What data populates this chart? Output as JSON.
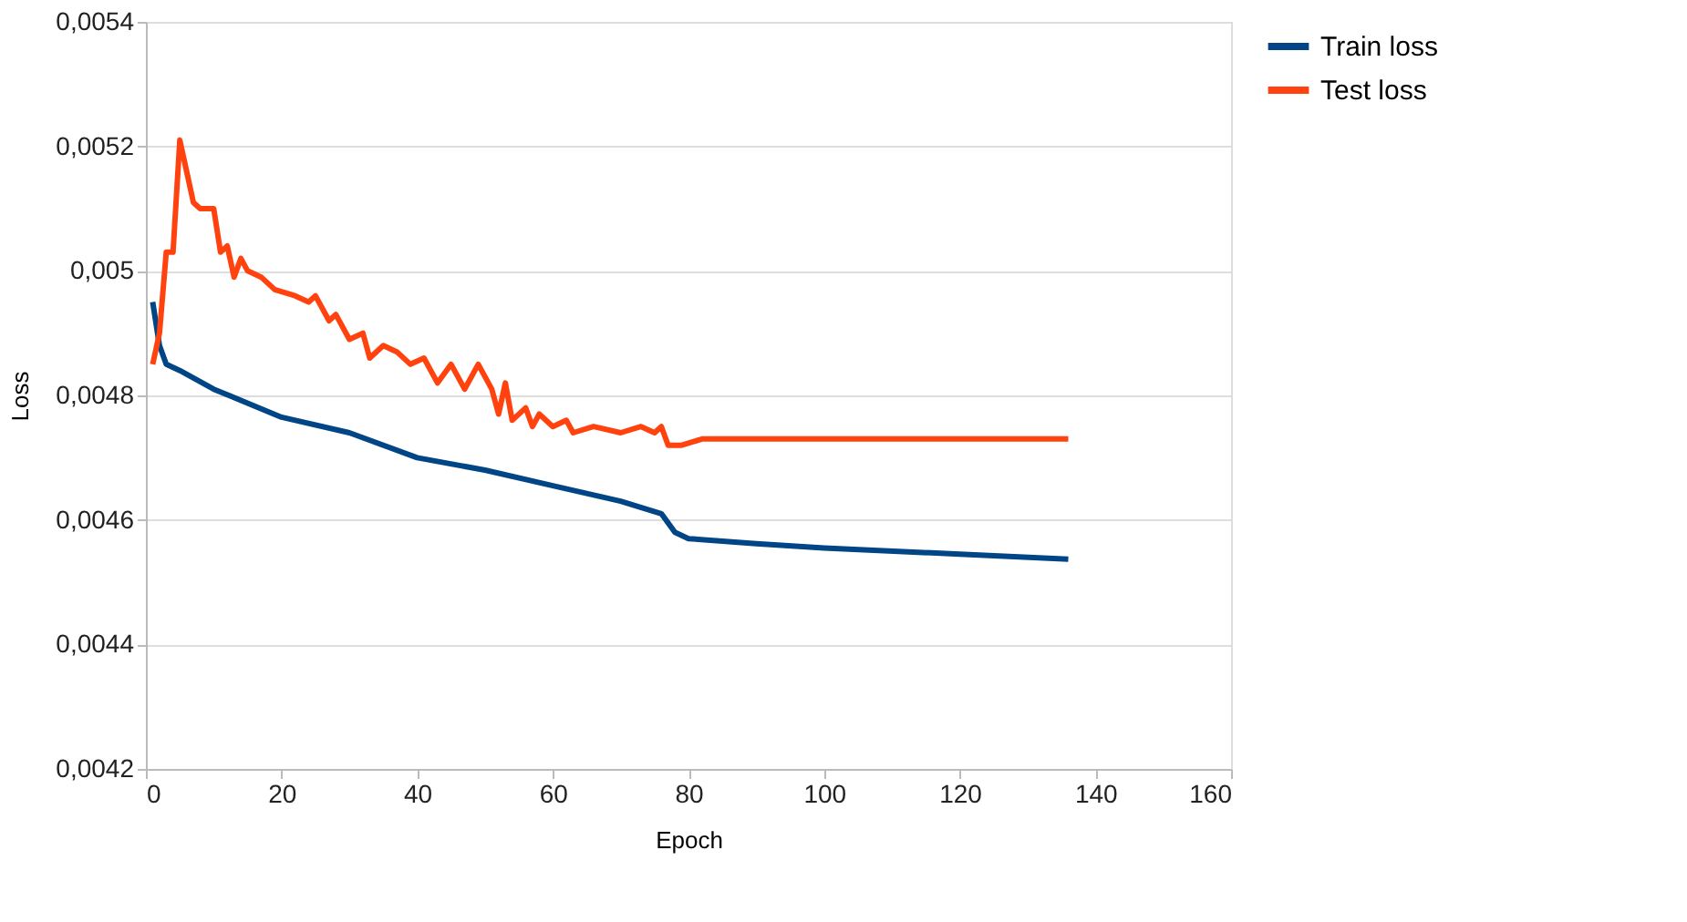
{
  "chart_data": {
    "type": "line",
    "xlabel": "Epoch",
    "ylabel": "Loss",
    "xlim": [
      0,
      160
    ],
    "xticks": [
      0,
      20,
      40,
      60,
      80,
      100,
      120,
      140,
      160
    ],
    "ylim": [
      0.0042,
      0.0054
    ],
    "yticks": [
      {
        "value": 0.0042,
        "label": "0,0042"
      },
      {
        "value": 0.0044,
        "label": "0,0044"
      },
      {
        "value": 0.0046,
        "label": "0,0046"
      },
      {
        "value": 0.0048,
        "label": "0,0048"
      },
      {
        "value": 0.005,
        "label": "0,005"
      },
      {
        "value": 0.0052,
        "label": "0,0052"
      },
      {
        "value": 0.0054,
        "label": "0,0054"
      }
    ],
    "grid": "y",
    "legend": "right",
    "marker": "none",
    "line_style": "solid",
    "series": [
      {
        "name": "Train loss",
        "color": "#004586",
        "x": [
          1,
          2,
          3,
          5,
          10,
          20,
          30,
          40,
          50,
          60,
          70,
          76,
          78,
          80,
          90,
          100,
          120,
          136
        ],
        "values": [
          0.00495,
          0.00488,
          0.00485,
          0.00484,
          0.00481,
          0.004765,
          0.00474,
          0.0047,
          0.00468,
          0.004655,
          0.00463,
          0.00461,
          0.00458,
          0.00457,
          0.004562,
          0.004555,
          0.004545,
          0.004537
        ]
      },
      {
        "name": "Test loss",
        "color": "#ff420e",
        "x": [
          1,
          2,
          3,
          4,
          5,
          6,
          7,
          8,
          9,
          10,
          11,
          12,
          13,
          14,
          15,
          17,
          19,
          22,
          24,
          25,
          27,
          28,
          30,
          32,
          33,
          35,
          37,
          39,
          41,
          43,
          45,
          47,
          49,
          51,
          52,
          53,
          54,
          56,
          57,
          58,
          60,
          62,
          63,
          66,
          70,
          73,
          75,
          76,
          77,
          79,
          82,
          90,
          136
        ],
        "values": [
          0.00485,
          0.0049,
          0.00503,
          0.00503,
          0.00521,
          0.00516,
          0.00511,
          0.0051,
          0.0051,
          0.0051,
          0.00503,
          0.00504,
          0.00499,
          0.00502,
          0.005,
          0.00499,
          0.00497,
          0.00496,
          0.00495,
          0.00496,
          0.00492,
          0.00493,
          0.00489,
          0.0049,
          0.00486,
          0.00488,
          0.00487,
          0.00485,
          0.00486,
          0.00482,
          0.00485,
          0.00481,
          0.00485,
          0.00481,
          0.00477,
          0.00482,
          0.00476,
          0.00478,
          0.00475,
          0.00477,
          0.00475,
          0.00476,
          0.00474,
          0.00475,
          0.00474,
          0.00475,
          0.00474,
          0.00475,
          0.00472,
          0.00472,
          0.00473,
          0.00473,
          0.00473
        ]
      }
    ]
  }
}
